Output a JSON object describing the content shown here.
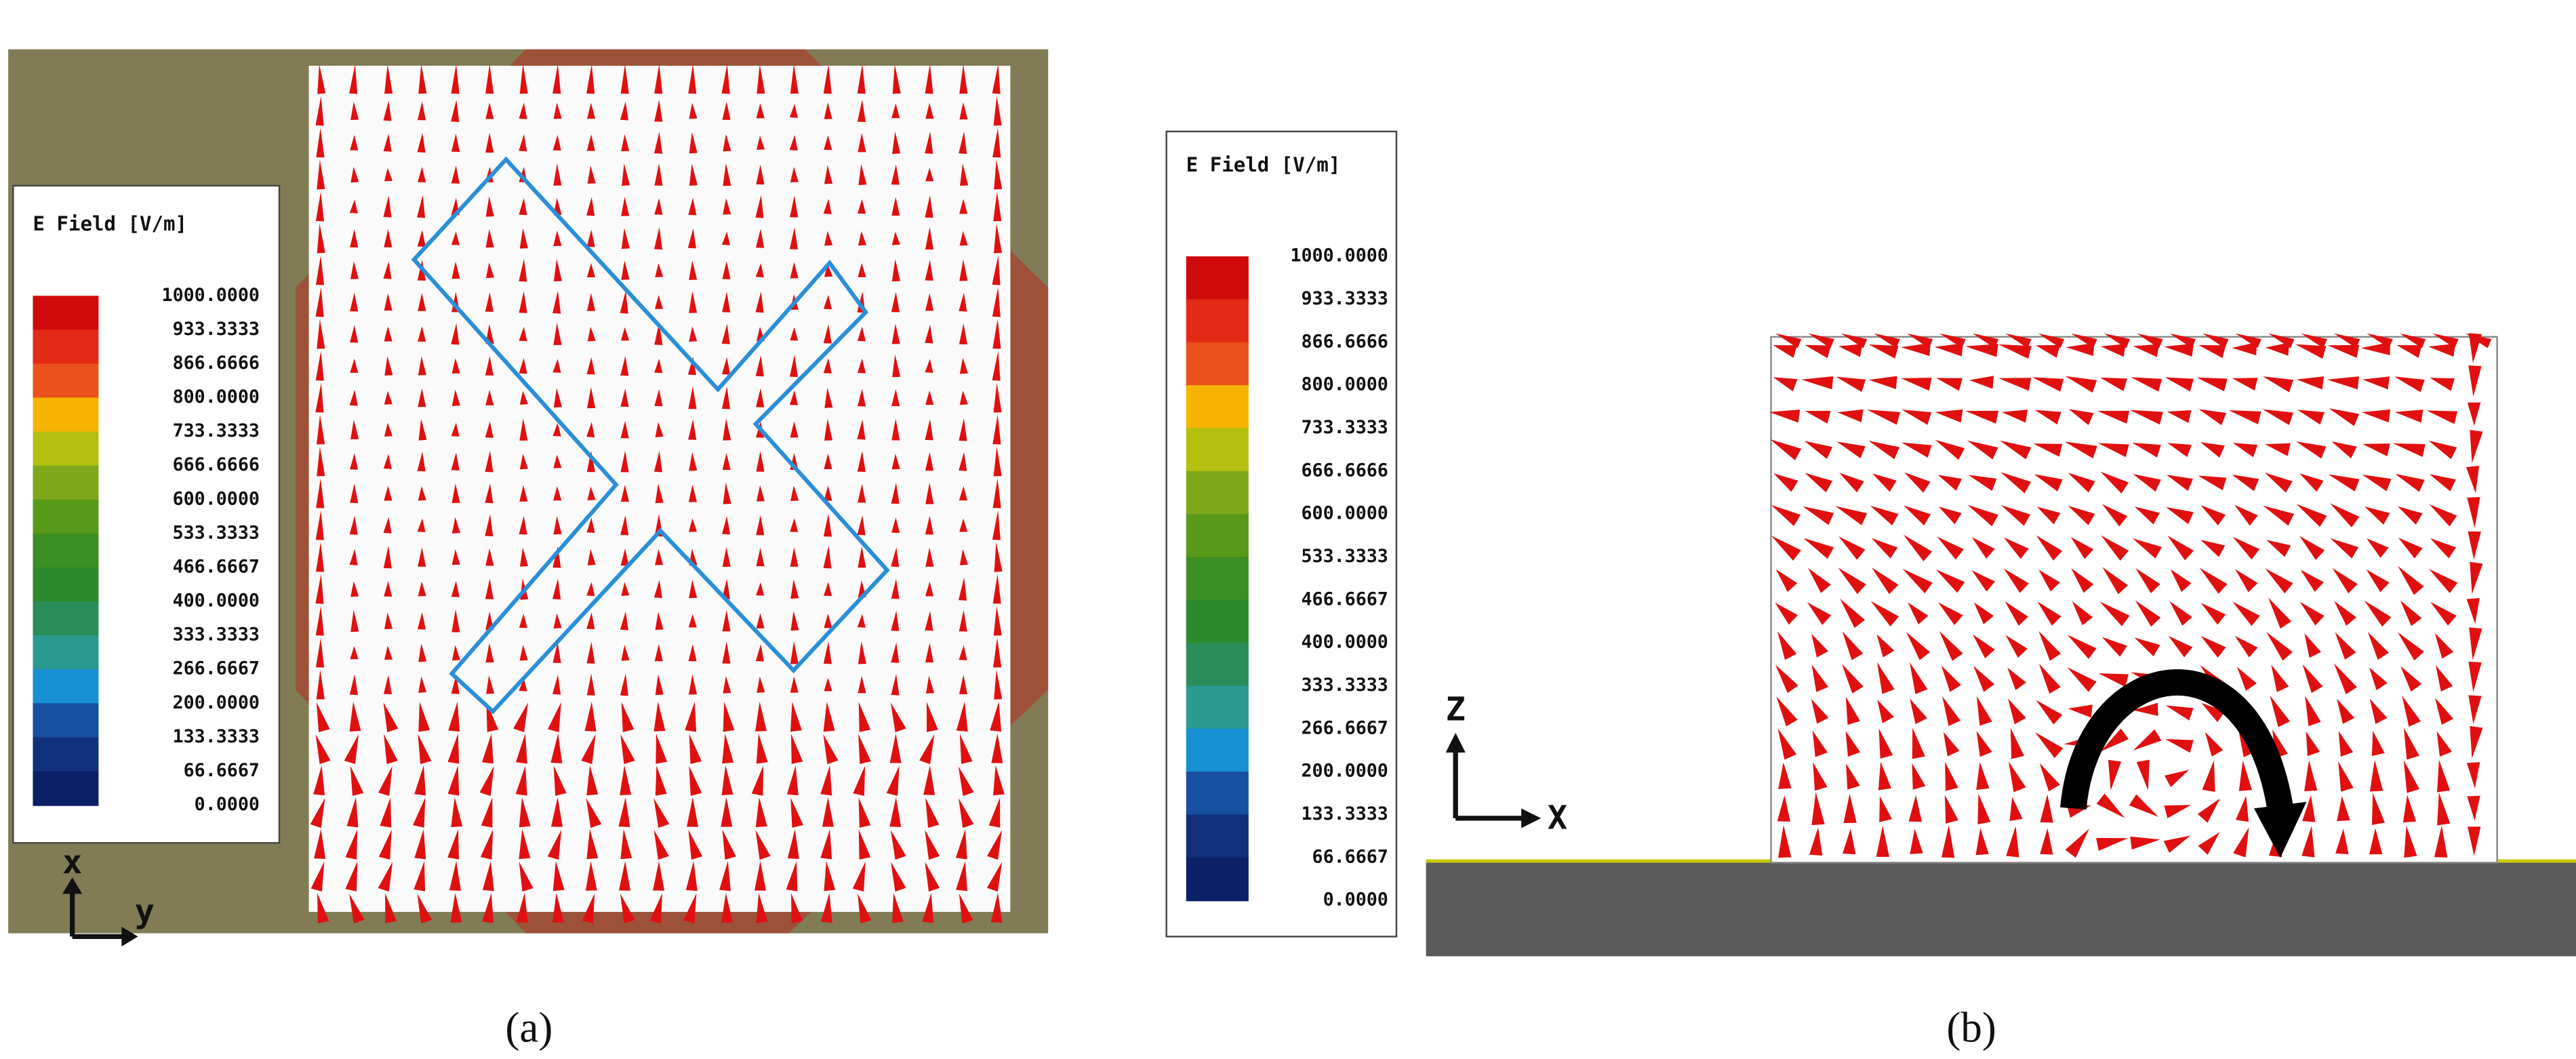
{
  "panels": [
    {
      "legend": {
        "title": "E Field [V/m]",
        "labels": [
          "1000.0000",
          "933.3333",
          "866.6666",
          "800.0000",
          "733.3333",
          "666.6666",
          "600.0000",
          "533.3333",
          "466.6667",
          "400.0000",
          "333.3333",
          "266.6667",
          "200.0000",
          "133.3333",
          "66.6667",
          "0.0000"
        ],
        "colors": [
          "#d00a0a",
          "#e32a14",
          "#e9521a",
          "#f6b400",
          "#b4bf10",
          "#7ea81a",
          "#58991a",
          "#3a8f22",
          "#2a8a2c",
          "#2a8c58",
          "#2a9a90",
          "#1890d4",
          "#1650a0",
          "#10307c",
          "#0c2068"
        ]
      },
      "axes": {
        "vertical": "x",
        "horizontal": "y"
      },
      "caption": "(a)"
    },
    {
      "legend": {
        "title": "E Field [V/m]",
        "labels": [
          "1000.0000",
          "933.3333",
          "866.6666",
          "800.0000",
          "733.3333",
          "666.6666",
          "600.0000",
          "533.3333",
          "466.6667",
          "400.0000",
          "333.3333",
          "266.6667",
          "200.0000",
          "133.3333",
          "66.6667",
          "0.0000"
        ],
        "colors": [
          "#d00a0a",
          "#e32a14",
          "#e9521a",
          "#f6b400",
          "#b4bf10",
          "#7ea81a",
          "#58991a",
          "#3a8f22",
          "#2a8a2c",
          "#2a8c58",
          "#2a9a90",
          "#1890d4",
          "#1650a0",
          "#10307c",
          "#0c2068"
        ]
      },
      "axes": {
        "vertical": "Z",
        "horizontal": "X"
      },
      "caption": "(b)"
    }
  ]
}
